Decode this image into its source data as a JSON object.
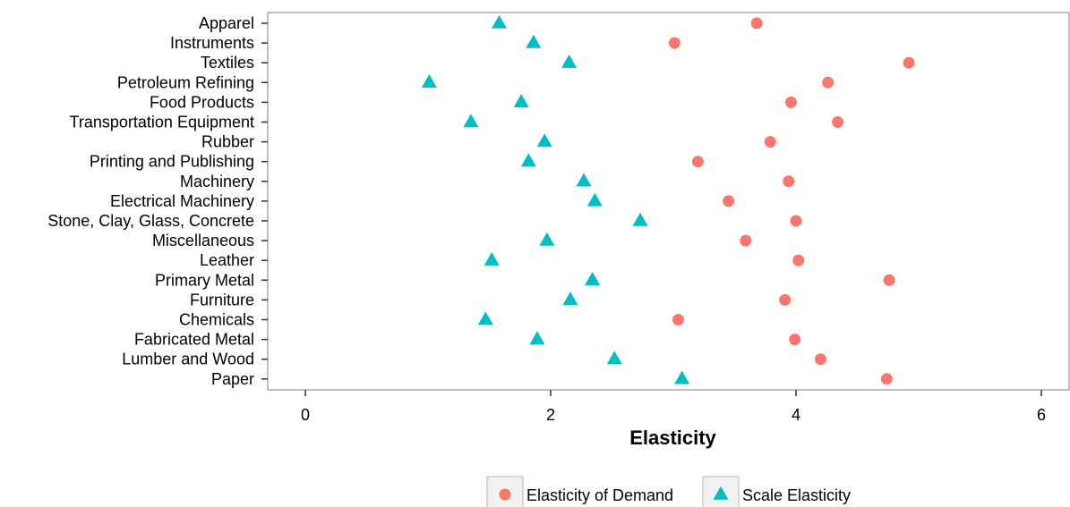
{
  "chart_data": {
    "type": "scatter",
    "orientation": "horizontal-dotplot",
    "title": "",
    "xlabel": "Elasticity",
    "ylabel": "",
    "xlim": [
      -0.3,
      6.25
    ],
    "xticks": [
      0,
      2,
      4,
      6
    ],
    "grid": false,
    "legend_position": "bottom",
    "categories": [
      "Apparel",
      "Instruments",
      "Textiles",
      "Petroleum Refining",
      "Food Products",
      "Transportation Equipment",
      "Rubber",
      "Printing and Publishing",
      "Machinery",
      "Electrical Machinery",
      "Stone, Clay, Glass, Concrete",
      "Miscellaneous",
      "Leather",
      "Primary Metal",
      "Furniture",
      "Chemicals",
      "Fabricated Metal",
      "Lumber and Wood",
      "Paper"
    ],
    "series": [
      {
        "name": "Elasticity of Demand",
        "marker": "circle",
        "color": "#F8766D",
        "values": [
          3.68,
          3.01,
          4.92,
          4.26,
          3.96,
          4.34,
          3.79,
          3.2,
          3.94,
          3.45,
          4.0,
          3.59,
          4.02,
          4.76,
          3.91,
          3.04,
          3.99,
          4.2,
          4.74
        ]
      },
      {
        "name": "Scale Elasticity",
        "marker": "triangle",
        "color": "#00BFC4",
        "values": [
          1.58,
          1.86,
          2.15,
          1.01,
          1.76,
          1.35,
          1.95,
          1.82,
          2.27,
          2.36,
          2.73,
          1.97,
          1.52,
          2.34,
          2.16,
          1.47,
          1.89,
          2.52,
          3.07
        ]
      }
    ]
  }
}
